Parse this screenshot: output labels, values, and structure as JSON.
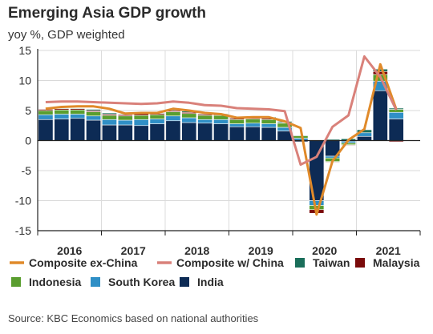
{
  "chart_data": {
    "type": "bar",
    "title": "Emerging Asia GDP growth",
    "subtitle": "yoy %, GDP weighted",
    "source": "Source: KBC Economics based on national authorities",
    "ylim": [
      -15,
      15
    ],
    "yticks": [
      15,
      10,
      5,
      0,
      -5,
      -10,
      -15
    ],
    "grid": true,
    "year_labels": [
      "2016",
      "2017",
      "2018",
      "2019",
      "2020",
      "2021"
    ],
    "quarters": [
      "2016Q1",
      "2016Q2",
      "2016Q3",
      "2016Q4",
      "2017Q1",
      "2017Q2",
      "2017Q3",
      "2017Q4",
      "2018Q1",
      "2018Q2",
      "2018Q3",
      "2018Q4",
      "2019Q1",
      "2019Q2",
      "2019Q3",
      "2019Q4",
      "2020Q1",
      "2020Q2",
      "2020Q3",
      "2020Q4",
      "2021Q1",
      "2021Q2",
      "2021Q3"
    ],
    "bar_series": [
      {
        "name": "India",
        "color": "#0d2b55",
        "values": [
          3.5,
          3.6,
          3.7,
          3.4,
          2.6,
          2.6,
          2.5,
          2.8,
          3.3,
          3.0,
          2.9,
          2.8,
          2.3,
          2.3,
          2.2,
          1.6,
          -0.2,
          -10.0,
          -2.6,
          -0.1,
          0.7,
          8.3,
          3.6
        ]
      },
      {
        "name": "South Korea",
        "color": "#2f8fc6",
        "values": [
          0.8,
          0.8,
          0.7,
          0.7,
          0.9,
          0.8,
          1.0,
          0.8,
          0.8,
          0.8,
          0.6,
          0.7,
          0.5,
          0.6,
          0.6,
          0.6,
          0.4,
          -0.8,
          -0.3,
          -0.3,
          0.6,
          1.6,
          1.1
        ]
      },
      {
        "name": "Indonesia",
        "color": "#5a9e2f",
        "values": [
          0.7,
          0.7,
          0.7,
          0.7,
          0.7,
          0.7,
          0.7,
          0.7,
          0.7,
          0.7,
          0.7,
          0.7,
          0.7,
          0.7,
          0.7,
          0.7,
          0.4,
          -0.7,
          -0.6,
          -0.3,
          0.0,
          1.1,
          0.5
        ]
      },
      {
        "name": "Malaysia",
        "color": "#7a0a0a",
        "values": [
          0.2,
          0.2,
          0.2,
          0.2,
          0.2,
          0.2,
          0.3,
          0.2,
          0.2,
          0.2,
          0.2,
          0.2,
          0.2,
          0.2,
          0.2,
          0.1,
          0.0,
          -0.6,
          -0.1,
          -0.1,
          -0.1,
          0.5,
          -0.2
        ]
      },
      {
        "name": "Taiwan",
        "color": "#1a6e5a",
        "values": [
          0.0,
          0.1,
          0.1,
          0.2,
          0.2,
          0.1,
          0.2,
          0.1,
          0.2,
          0.2,
          0.1,
          0.1,
          0.1,
          0.1,
          0.2,
          0.2,
          0.1,
          0.0,
          0.2,
          0.3,
          0.5,
          0.4,
          0.2
        ]
      }
    ],
    "line_series": [
      {
        "name": "Composite ex-China",
        "color": "#e08a2a",
        "values": [
          5.3,
          5.6,
          5.7,
          5.7,
          5.3,
          4.5,
          4.6,
          4.6,
          5.3,
          5.0,
          4.6,
          4.4,
          3.8,
          3.9,
          3.9,
          3.2,
          2.1,
          -12.3,
          -3.4,
          0.1,
          1.9,
          12.7,
          5.2
        ]
      },
      {
        "name": "Composite w/ China",
        "color": "#d9817a",
        "values": [
          6.4,
          6.5,
          6.5,
          6.4,
          6.3,
          6.2,
          6.1,
          6.2,
          6.5,
          6.3,
          5.9,
          5.8,
          5.4,
          5.3,
          5.2,
          4.9,
          -4.0,
          -2.7,
          2.3,
          4.2,
          14.0,
          10.6,
          5.1
        ]
      }
    ],
    "legend": {
      "placement": "bottom",
      "entries": [
        {
          "label": "Composite ex-China",
          "kind": "line",
          "color": "#e08a2a"
        },
        {
          "label": "Composite w/ China",
          "kind": "line",
          "color": "#d9817a"
        },
        {
          "label": "Taiwan",
          "kind": "box",
          "color": "#1a6e5a"
        },
        {
          "label": "Malaysia",
          "kind": "box",
          "color": "#7a0a0a"
        },
        {
          "label": "Indonesia",
          "kind": "box",
          "color": "#5a9e2f"
        },
        {
          "label": "South Korea",
          "kind": "box",
          "color": "#2f8fc6"
        },
        {
          "label": "India",
          "kind": "box",
          "color": "#0d2b55"
        }
      ]
    }
  }
}
